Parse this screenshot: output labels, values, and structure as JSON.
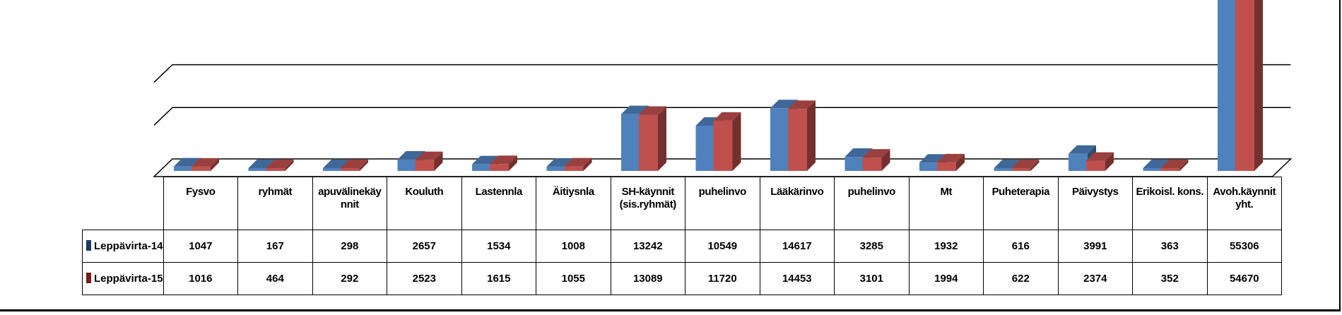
{
  "chart_data": {
    "type": "bar",
    "categories": [
      "Fysvo",
      "ryhmät",
      "apuvälinekäy nnit",
      "Kouluth",
      "Lastennla",
      "Äitiysnla",
      "SH-käynnit (sis.ryhmät)",
      "puhelinvo",
      "Lääkärinvo",
      "puhelinvo",
      "Mt",
      "Puheterapia",
      "Päivystys",
      "Erikoisl. kons.",
      "Avoh.käynnit yht."
    ],
    "series": [
      {
        "name": "Leppävirta-14",
        "color": "#4f81bd",
        "values": [
          1047,
          167,
          298,
          2657,
          1534,
          1008,
          13242,
          10549,
          14617,
          3285,
          1932,
          616,
          3991,
          363,
          55306
        ]
      },
      {
        "name": "Leppävirta-15",
        "color": "#c0504d",
        "values": [
          1016,
          464,
          292,
          2523,
          1615,
          1055,
          13089,
          11720,
          14453,
          3101,
          1994,
          622,
          2374,
          352,
          54670
        ]
      }
    ],
    "grid": true,
    "legend": "data-table",
    "three_d": true,
    "legend_colors": {
      "Leppävirta-14": "#1f3864",
      "Leppävirta-15": "#7b1c1c"
    }
  }
}
